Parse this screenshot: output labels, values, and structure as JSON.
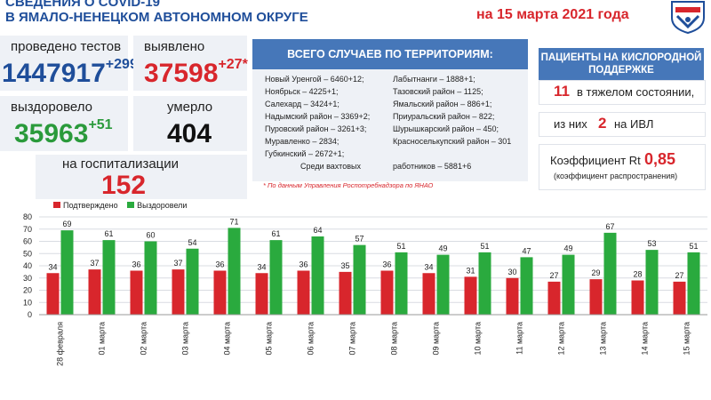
{
  "header": {
    "title_line1": "СВЕДЕНИЯ О COVID-19",
    "title_line2": "В ЯМАЛО-НЕНЕЦКОМ АВТОНОМНОМ ОКРУГЕ",
    "date": "на 15 марта 2021 года"
  },
  "stats": {
    "tests_label": "проведено тестов",
    "tests_value": "1447917",
    "tests_delta": "+299",
    "detected_label": "выявлено",
    "detected_value": "37598",
    "detected_delta": "+27*",
    "recovered_label": "выздоровело",
    "recovered_value": "35963",
    "recovered_delta": "+51",
    "died_label": "умерло",
    "died_value": "404",
    "hosp_label": "на госпитализации",
    "hosp_value": "152"
  },
  "territory": {
    "heading": "ВСЕГО СЛУЧАЕВ ПО ТЕРРИТОРИЯМ:",
    "left": [
      "Новый Уренгой – 6460+12;",
      "Ноябрьск – 4225+1;",
      "Салехард – 3424+1;",
      "Надымский район – 3369+2;",
      "Пуровский район – 3261+3;",
      "Муравленко – 2834;",
      "Губкинский – 2672+1;"
    ],
    "right": [
      "Лабытнанги – 1888+1;",
      "Тазовский район – 1125;",
      "Ямальский район – 886+1;",
      "Приуральский район – 822;",
      "Шурышкарский район – 450;",
      "Красноселькупский район – 301"
    ],
    "shift": "Среди вахтовых",
    "shift_value": "работников – 5881+6",
    "note": "* По данным Управления Роспотребнадзора по ЯНАО"
  },
  "oxygen": {
    "heading": "ПАЦИЕНТЫ НА КИСЛОРОДНОЙ ПОДДЕРЖКЕ",
    "severe_num": "11",
    "severe_text": "в тяжелом состоянии,",
    "of_them": "из них",
    "ivl_num": "2",
    "ivl_text": "на ИВЛ",
    "rt_label": "Коэффициент Rt",
    "rt_value": "0,85",
    "rt_sub": "(коэффициент распространения)"
  },
  "colors": {
    "confirmed": "#d8262c",
    "recovered": "#2aaa3e",
    "brand_blue": "#1f4e9a",
    "panel_blue": "#4677b9"
  },
  "chart_data": {
    "type": "bar",
    "categories": [
      "28 февраля",
      "01 марта",
      "02 марта",
      "03 марта",
      "04 марта",
      "05 марта",
      "06 марта",
      "07 марта",
      "08 марта",
      "09 марта",
      "10 марта",
      "11 марта",
      "12 марта",
      "13 марта",
      "14 марта",
      "15 марта"
    ],
    "series": [
      {
        "name": "Подтверждено",
        "values": [
          34,
          37,
          36,
          37,
          36,
          34,
          36,
          35,
          36,
          34,
          31,
          30,
          27,
          29,
          28,
          27
        ]
      },
      {
        "name": "Выздоровели",
        "values": [
          69,
          61,
          60,
          54,
          71,
          61,
          64,
          57,
          51,
          49,
          51,
          47,
          49,
          67,
          53,
          51
        ]
      }
    ],
    "ylim": [
      0,
      80
    ],
    "yticks": [
      0,
      10,
      20,
      30,
      40,
      50,
      60,
      70,
      80
    ],
    "grid": true,
    "legend": "top-left"
  }
}
